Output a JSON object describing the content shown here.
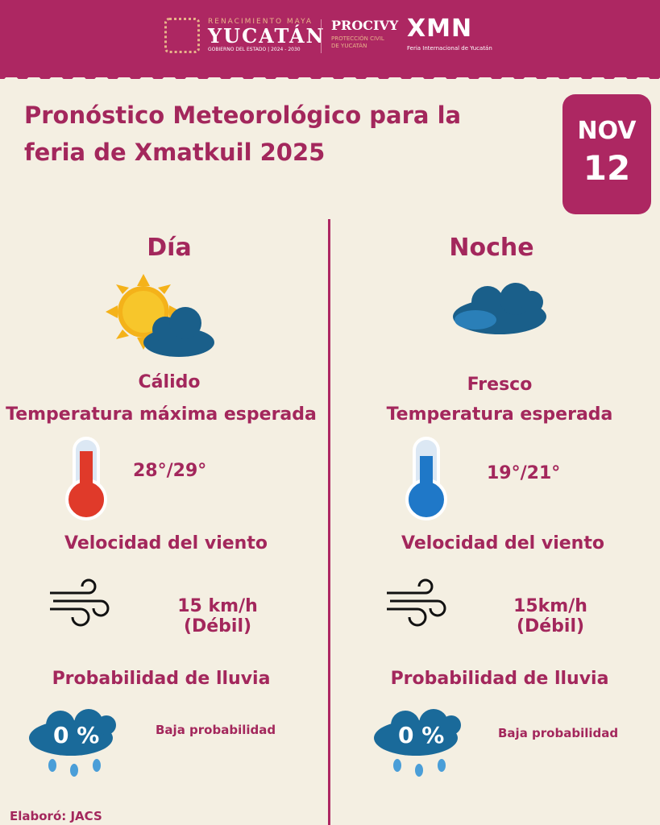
{
  "header": {
    "gov_tagline": "RENACIMIENTO MAYA",
    "gov_name": "YUCATÁN",
    "gov_sub": "GOBIERNO DEL ESTADO | 2024 - 2030",
    "procivy": "PROCIVY",
    "procivy_sub1": "PROTECCIÓN CIVIL",
    "procivy_sub2": "DE YUCATÁN",
    "xmn": "XMN",
    "xmn_sub": "Feria Internacional de Yucatán"
  },
  "title_line1": "Pronóstico Meteorológico para la",
  "title_line2": "feria de Xmatkuil 2025",
  "date": {
    "month": "NOV",
    "day": "12"
  },
  "day": {
    "heading": "Día",
    "icon": "sun-cloud-icon",
    "condition": "Cálido",
    "temp_label": "Temperatura máxima esperada",
    "temp": "28°/29°",
    "wind_label": "Velocidad del viento",
    "wind1": "15 km/h",
    "wind2": "(Débil)",
    "rain_label": "Probabilidad de lluvia",
    "rain_pct": "0 %",
    "rain_text": "Baja probabilidad"
  },
  "night": {
    "heading": "Noche",
    "icon": "cloud-icon",
    "condition": "Fresco",
    "temp_label": "Temperatura esperada",
    "temp": "19°/21°",
    "wind_label": "Velocidad del viento",
    "wind1": "15km/h",
    "wind2": "(Débil)",
    "rain_label": "Probabilidad de lluvia",
    "rain_pct": "0 %",
    "rain_text": "Baja probabilidad"
  },
  "footer": "Elaboró: JACS",
  "colors": {
    "brand": "#ad2762",
    "background": "#f4efe2",
    "hot": "#e03a2a",
    "cold": "#1f78c8"
  }
}
